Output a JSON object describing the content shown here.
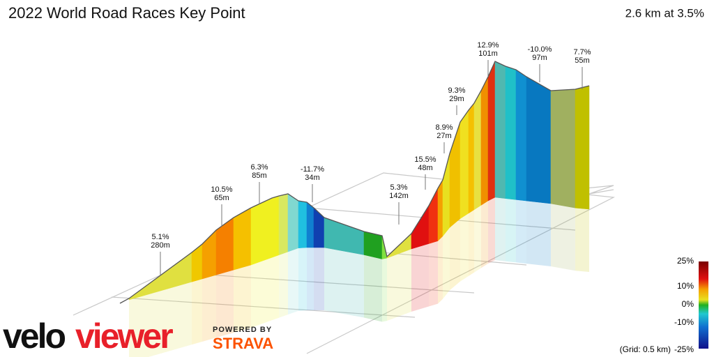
{
  "header": {
    "title": "2022 World Road Races Key Point",
    "summary": "2.6 km at 3.5%"
  },
  "annotations": [
    {
      "gradient": "5.1%",
      "distance": "280m"
    },
    {
      "gradient": "10.5%",
      "distance": "65m"
    },
    {
      "gradient": "6.3%",
      "distance": "85m"
    },
    {
      "gradient": "-11.7%",
      "distance": "34m"
    },
    {
      "gradient": "5.3%",
      "distance": "142m"
    },
    {
      "gradient": "15.5%",
      "distance": "48m"
    },
    {
      "gradient": "8.9%",
      "distance": "27m"
    },
    {
      "gradient": "9.3%",
      "distance": "29m"
    },
    {
      "gradient": "12.9%",
      "distance": "101m"
    },
    {
      "gradient": "-10.0%",
      "distance": "97m"
    },
    {
      "gradient": "7.7%",
      "distance": "55m"
    }
  ],
  "legend": {
    "labels": [
      "25%",
      "10%",
      "0%",
      "-10%",
      "-25%"
    ],
    "grid_note": "(Grid: 0.5 km)"
  },
  "branding": {
    "logo_velo": "velo",
    "logo_viewer": "viewer",
    "powered_by": "POWERED BY",
    "strava": "STRAVA"
  }
}
